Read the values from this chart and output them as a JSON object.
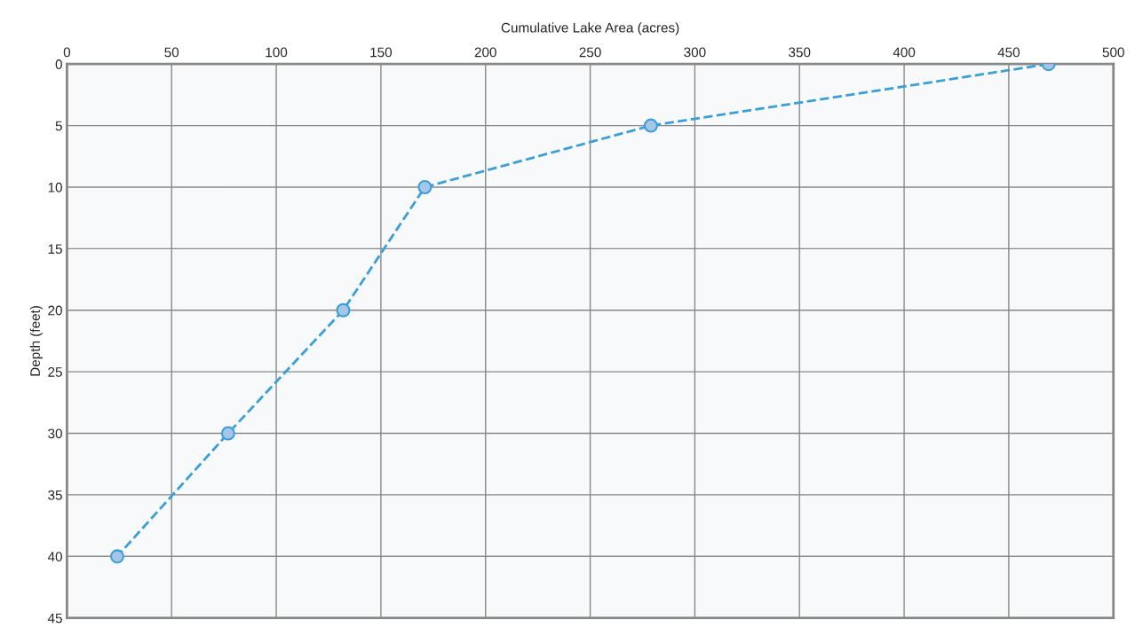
{
  "chart_data": {
    "type": "line",
    "xlabel": "Cumulative Lake Area (acres)",
    "ylabel": "Depth (feet)",
    "x": [
      469,
      279,
      171,
      132,
      77,
      24
    ],
    "series": [
      {
        "color": "#3a9fd8",
        "values": [
          0,
          5,
          10,
          20,
          30,
          40
        ]
      }
    ],
    "xlim": [
      0,
      500
    ],
    "xticks": [
      0,
      50,
      100,
      150,
      200,
      250,
      300,
      350,
      400,
      450,
      500
    ],
    "ylim": [
      45,
      0
    ],
    "yticks": [
      0,
      5,
      10,
      15,
      20,
      25,
      30,
      35,
      40,
      45
    ],
    "grid": true,
    "marker": "circle",
    "line_style": "dashed"
  }
}
